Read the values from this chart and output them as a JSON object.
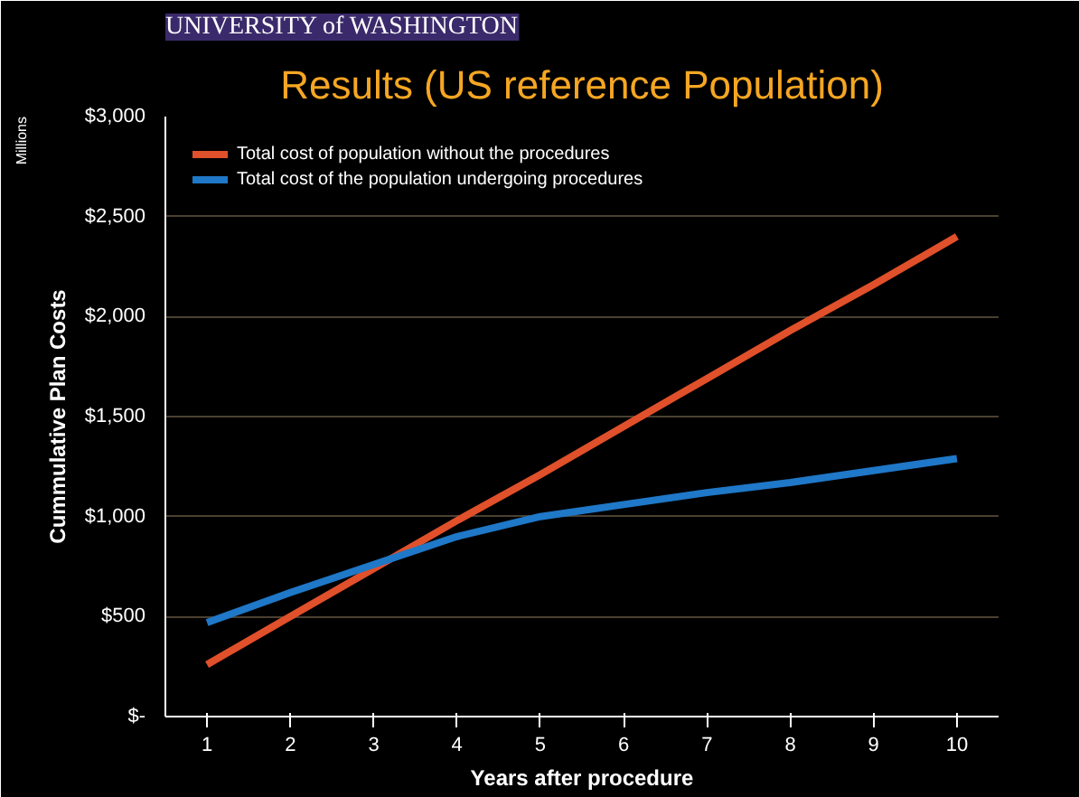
{
  "chart_data": {
    "type": "line",
    "title": "Results (US reference Population)",
    "annotations": [
      "UNIVERSITY of WASHINGTON",
      "Millions"
    ],
    "xlabel": "Years after procedure",
    "ylabel": "Cummulative Plan Costs",
    "categories": [
      "1",
      "2",
      "3",
      "4",
      "5",
      "6",
      "7",
      "8",
      "9",
      "10"
    ],
    "series": [
      {
        "name": "Total cost of population without the procedures",
        "color": "#e0502a",
        "values": [
          260,
          500,
          740,
          980,
          1210,
          1450,
          1690,
          1930,
          2160,
          2400
        ]
      },
      {
        "name": "Total cost of the population undergoing procedures",
        "color": "#1f78c8",
        "values": [
          470,
          620,
          760,
          900,
          1000,
          1060,
          1120,
          1170,
          1230,
          1290
        ]
      }
    ],
    "ylim": [
      0,
      3000
    ],
    "yticks": [
      {
        "value": 0,
        "label": "$-"
      },
      {
        "value": 500,
        "label": "$500"
      },
      {
        "value": 1000,
        "label": "$1,000"
      },
      {
        "value": 1500,
        "label": "$1,500"
      },
      {
        "value": 2000,
        "label": "$2,000"
      },
      {
        "value": 2500,
        "label": "$2,500"
      },
      {
        "value": 3000,
        "label": "$3,000"
      }
    ],
    "grid": "y",
    "legend": "top left",
    "marker": "none",
    "line_style": "solid"
  }
}
